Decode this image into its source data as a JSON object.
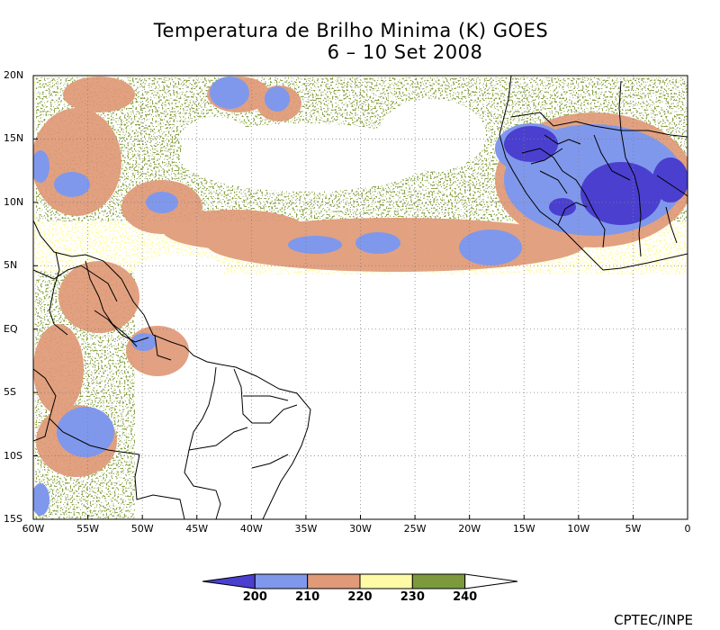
{
  "title_line1": "Temperatura de Brilho Minima (K) GOES",
  "title_line2": "6 – 10 Set 2008",
  "credit": "CPTEC/INPE",
  "map": {
    "lon_range": [
      -60,
      0
    ],
    "lat_range": [
      -15,
      20
    ],
    "lat_labels": [
      {
        "lat": 20,
        "text": "20N"
      },
      {
        "lat": 15,
        "text": "15N"
      },
      {
        "lat": 10,
        "text": "10N"
      },
      {
        "lat": 5,
        "text": "5N"
      },
      {
        "lat": 0,
        "text": "EQ"
      },
      {
        "lat": -5,
        "text": "5S"
      },
      {
        "lat": -10,
        "text": "10S"
      },
      {
        "lat": -15,
        "text": "15S"
      }
    ],
    "lon_labels": [
      {
        "lon": -60,
        "text": "60W"
      },
      {
        "lon": -55,
        "text": "55W"
      },
      {
        "lon": -50,
        "text": "50W"
      },
      {
        "lon": -45,
        "text": "45W"
      },
      {
        "lon": -40,
        "text": "40W"
      },
      {
        "lon": -35,
        "text": "35W"
      },
      {
        "lon": -30,
        "text": "30W"
      },
      {
        "lon": -25,
        "text": "25W"
      },
      {
        "lon": -20,
        "text": "20W"
      },
      {
        "lon": -15,
        "text": "15W"
      },
      {
        "lon": -10,
        "text": "10W"
      },
      {
        "lon": -5,
        "text": "5W"
      },
      {
        "lon": 0,
        "text": "0"
      }
    ],
    "grid": "dotted"
  },
  "colorbar": {
    "colors": [
      "#4a3fcf",
      "#7f98ec",
      "#e09a78",
      "#fffaa6",
      "#7c9a3b",
      "#ffffff"
    ],
    "labels": [
      "200",
      "210",
      "220",
      "230",
      "240"
    ]
  },
  "chart_data": {
    "type": "heatmap",
    "title": "Temperatura de Brilho Minima (K) GOES",
    "subtitle": "6 – 10 Set 2008",
    "xlim": [
      -60,
      0
    ],
    "ylim": [
      -15,
      20
    ],
    "levels": [
      200,
      210,
      220,
      230,
      240
    ],
    "cloud_regions": [
      {
        "lon": -12,
        "lat": 12,
        "min_tb": 205
      },
      {
        "lon": -4,
        "lat": 11,
        "min_tb": 205
      },
      {
        "lon": -25,
        "lat": 6,
        "min_tb": 215
      },
      {
        "lon": -56,
        "lat": -8,
        "min_tb": 210
      },
      {
        "lon": -42,
        "lat": 19,
        "min_tb": 210
      }
    ]
  }
}
